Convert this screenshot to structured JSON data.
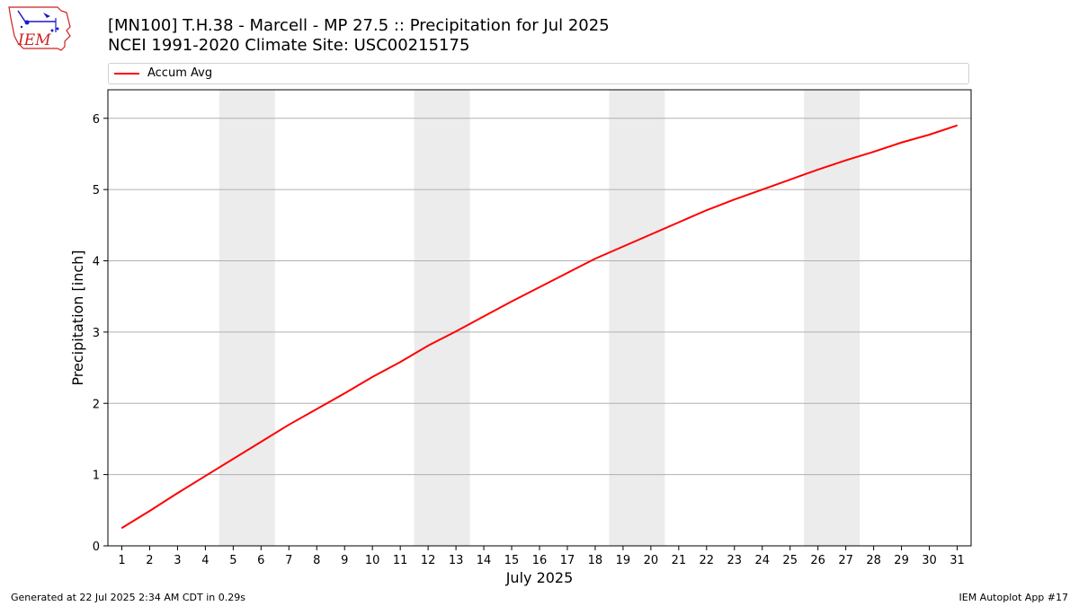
{
  "header": {
    "title_line1": "[MN100] T.H.38 - Marcell - MP 27.5  :: Precipitation for Jul 2025",
    "title_line2": "NCEI 1991-2020 Climate Site: USC00215175",
    "logo_text": "IEM"
  },
  "legend": {
    "entries": [
      {
        "label": "Accum Avg",
        "color": "#ff0000"
      }
    ]
  },
  "footer": {
    "generated": "Generated at 22 Jul 2025 2:34 AM CDT in 0.29s",
    "app": "IEM Autoplot App #17"
  },
  "colors": {
    "series": "#ff0000",
    "weekend_band": "#ececec",
    "grid": "#b0b0b0",
    "logo_red": "#cc2222",
    "logo_blue": "#1a1acc"
  },
  "chart_data": {
    "type": "line",
    "xlabel": "July 2025",
    "ylabel": "Precipitation [inch]",
    "xlim": [
      0.5,
      31.5
    ],
    "ylim": [
      0,
      6.4
    ],
    "x_ticks": [
      1,
      2,
      3,
      4,
      5,
      6,
      7,
      8,
      9,
      10,
      11,
      12,
      13,
      14,
      15,
      16,
      17,
      18,
      19,
      20,
      21,
      22,
      23,
      24,
      25,
      26,
      27,
      28,
      29,
      30,
      31
    ],
    "y_ticks": [
      0,
      1,
      2,
      3,
      4,
      5,
      6
    ],
    "grid": "horizontal",
    "legend_position": "top",
    "weekend_bands": [
      [
        5,
        6
      ],
      [
        12,
        13
      ],
      [
        19,
        20
      ],
      [
        26,
        27
      ]
    ],
    "series": [
      {
        "name": "Accum Avg",
        "color": "#ff0000",
        "x": [
          1,
          2,
          3,
          4,
          5,
          6,
          7,
          8,
          9,
          10,
          11,
          12,
          13,
          14,
          15,
          16,
          17,
          18,
          19,
          20,
          21,
          22,
          23,
          24,
          25,
          26,
          27,
          28,
          29,
          30,
          31
        ],
        "values": [
          0.25,
          0.49,
          0.74,
          0.98,
          1.22,
          1.46,
          1.7,
          1.92,
          2.14,
          2.37,
          2.58,
          2.81,
          3.01,
          3.22,
          3.43,
          3.63,
          3.83,
          4.03,
          4.2,
          4.37,
          4.54,
          4.71,
          4.86,
          5.0,
          5.14,
          5.28,
          5.41,
          5.53,
          5.66,
          5.77,
          5.9
        ]
      }
    ]
  }
}
